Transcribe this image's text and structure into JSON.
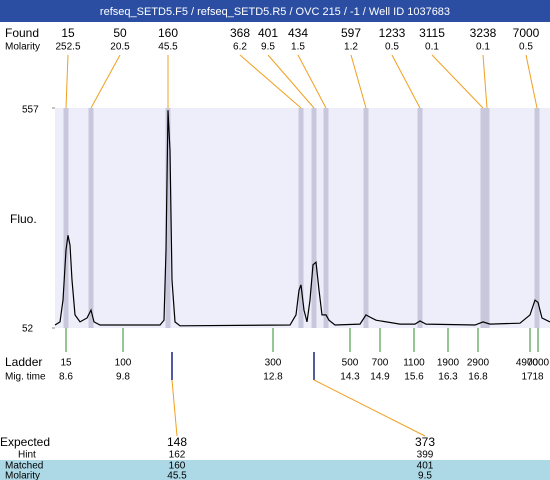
{
  "title": "refseq_SETD5.F5 / refseq_SETD5.R5 / OVC 215 / -1 / Well ID 1037683",
  "chart_data": {
    "type": "line",
    "ylabel": "Fluo.",
    "color": "#000000",
    "x": [
      0,
      5,
      8,
      11,
      13,
      15,
      17,
      20,
      25,
      32,
      36,
      39,
      45,
      105,
      109,
      111,
      113,
      115,
      117,
      120,
      125,
      235,
      241,
      244,
      246,
      249,
      252,
      255,
      258,
      261,
      264,
      267,
      271,
      274,
      280,
      305,
      311,
      315,
      321,
      345,
      360,
      365,
      371,
      420,
      428,
      435,
      465,
      475,
      480,
      483,
      487,
      495
    ],
    "y": [
      59,
      66,
      116,
      231,
      265,
      242,
      162,
      82,
      66,
      75,
      93,
      66,
      59,
      59,
      70,
      231,
      552,
      460,
      162,
      66,
      57,
      59,
      82,
      139,
      151,
      93,
      66,
      116,
      197,
      203,
      139,
      82,
      82,
      70,
      59,
      61,
      82,
      77,
      70,
      61,
      61,
      68,
      61,
      59,
      66,
      61,
      63,
      82,
      116,
      111,
      75,
      66
    ],
    "xlim": [
      0,
      495
    ],
    "ylim": [
      52,
      557
    ],
    "yticks": [
      52,
      557
    ]
  },
  "found": {
    "label": "Found",
    "molarity_label": "Molarity",
    "sizes": [
      15,
      50,
      160,
      368,
      401,
      434,
      597,
      1233,
      3115,
      3238,
      7000
    ],
    "molarity": [
      252.5,
      20.5,
      45.5,
      6.2,
      9.5,
      1.5,
      1.2,
      0.5,
      0.1,
      0.1,
      0.5
    ]
  },
  "ladder": {
    "label": "Ladder",
    "time_label": "Mig. time",
    "sizes": [
      15,
      100,
      300,
      500,
      700,
      1100,
      1900,
      2900,
      4900,
      7000
    ],
    "times": [
      8.6,
      9.8,
      12.8,
      14.3,
      14.9,
      15.6,
      16.3,
      16.8,
      17,
      18
    ]
  },
  "expected": {
    "label": "Expected",
    "hint_label": "Hint",
    "matched_label": "Matched",
    "molarity_label": "Molarity",
    "sizes": [
      148,
      373
    ],
    "hint": [
      162,
      399
    ],
    "matched": [
      160,
      401
    ],
    "molarity": [
      45.5,
      9.5
    ]
  }
}
